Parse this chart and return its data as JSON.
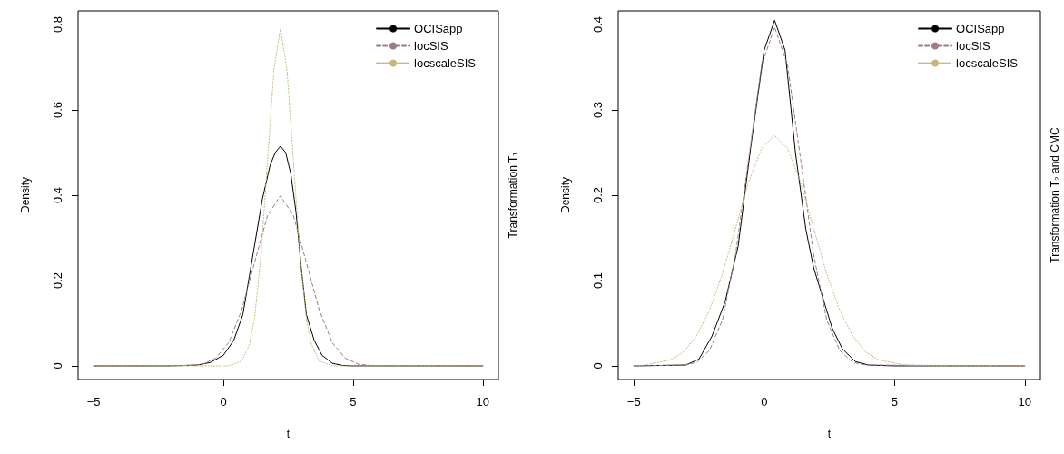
{
  "chart_data": [
    {
      "type": "line",
      "xlabel": "t",
      "ylabel": "Density",
      "y2label": "Transformation T₁",
      "xlim": [
        -5.6,
        10.6
      ],
      "xticks": [
        -5,
        0,
        5,
        10
      ],
      "ylim": [
        -0.032,
        0.832
      ],
      "yticks": [
        0,
        {
          "value": 0.2,
          "label": "0.2"
        },
        {
          "value": 0.4,
          "label": "0.4"
        },
        {
          "value": 0.6,
          "label": "0.6"
        },
        {
          "value": 0.8,
          "label": "0.8"
        }
      ],
      "grid": false,
      "legend": "top right",
      "marker": "none",
      "series": [
        {
          "name": "OCISapp",
          "color": "#000000",
          "line_style": "solid",
          "x": [
            -5,
            -2,
            -1,
            -0.5,
            0,
            0.4,
            0.75,
            1.0,
            1.5,
            1.8,
            2.0,
            2.2,
            2.4,
            2.6,
            2.8,
            3.0,
            3.2,
            3.5,
            3.8,
            4.2,
            4.6,
            5,
            10
          ],
          "values": [
            0,
            0,
            0.002,
            0.008,
            0.025,
            0.06,
            0.12,
            0.21,
            0.39,
            0.47,
            0.5,
            0.515,
            0.5,
            0.45,
            0.36,
            0.23,
            0.12,
            0.06,
            0.025,
            0.006,
            0.001,
            0,
            0
          ]
        },
        {
          "name": "locSIS",
          "color": "#9e7a8c",
          "line_style": "dashed",
          "x": [
            -5,
            -1.3,
            -0.8,
            -0.3,
            0.2,
            0.7,
            1.2,
            1.7,
            2.2,
            2.7,
            3.2,
            3.7,
            4.2,
            4.7,
            5.2,
            5.7,
            10
          ],
          "values": [
            0,
            0.001,
            0.004,
            0.018,
            0.054,
            0.13,
            0.242,
            0.352,
            0.399,
            0.352,
            0.242,
            0.13,
            0.054,
            0.018,
            0.004,
            0.001,
            0
          ]
        },
        {
          "name": "locscaleSIS",
          "color": "#c9b77a",
          "line_style": "dotted",
          "x": [
            -5,
            0.2,
            0.7,
            1.0,
            1.2,
            1.45,
            1.7,
            1.95,
            2.2,
            2.45,
            2.7,
            2.95,
            3.2,
            3.4,
            3.7,
            4.2,
            10
          ],
          "values": [
            0,
            0,
            0.011,
            0.05,
            0.11,
            0.26,
            0.48,
            0.695,
            0.79,
            0.695,
            0.48,
            0.26,
            0.11,
            0.05,
            0.011,
            0,
            0
          ]
        }
      ]
    },
    {
      "type": "line",
      "xlabel": "t",
      "ylabel": "Density",
      "y2label": "Transformation T₂ and CMC",
      "xlim": [
        -5.6,
        10.6
      ],
      "xticks": [
        -5,
        0,
        5,
        10
      ],
      "ylim": [
        -0.016,
        0.416
      ],
      "yticks": [
        0,
        {
          "value": 0.1,
          "label": "0.1"
        },
        {
          "value": 0.2,
          "label": "0.2"
        },
        {
          "value": 0.3,
          "label": "0.3"
        },
        {
          "value": 0.4,
          "label": "0.4"
        }
      ],
      "grid": false,
      "legend": "top right",
      "marker": "none",
      "series": [
        {
          "name": "OCISapp",
          "color": "#000000",
          "line_style": "solid",
          "x": [
            -5,
            -3,
            -2.5,
            -2,
            -1.5,
            -1,
            -0.5,
            0,
            0.4,
            0.8,
            1.2,
            1.6,
            1.9,
            2.2,
            2.6,
            3,
            3.5,
            4,
            5,
            10
          ],
          "values": [
            0,
            0.001,
            0.008,
            0.035,
            0.075,
            0.14,
            0.26,
            0.37,
            0.405,
            0.37,
            0.25,
            0.16,
            0.115,
            0.085,
            0.045,
            0.02,
            0.005,
            0.001,
            0,
            0
          ]
        },
        {
          "name": "locSIS",
          "color": "#9e7a8c",
          "line_style": "dashed",
          "x": [
            -5,
            -3.1,
            -2.6,
            -2.1,
            -1.6,
            -1.1,
            -0.6,
            -0.1,
            0.4,
            0.9,
            1.4,
            1.9,
            2.4,
            2.9,
            3.4,
            3.9,
            10
          ],
          "values": [
            0,
            0.001,
            0.004,
            0.018,
            0.054,
            0.13,
            0.242,
            0.352,
            0.397,
            0.352,
            0.242,
            0.13,
            0.054,
            0.018,
            0.004,
            0.001,
            0
          ]
        },
        {
          "name": "locscaleSIS",
          "color": "#c9b77a",
          "line_style": "dotted",
          "x": [
            -5,
            -4.6,
            -3.6,
            -3.1,
            -2.6,
            -2.1,
            -1.6,
            -1.1,
            -0.6,
            -0.1,
            0.4,
            0.9,
            1.4,
            1.9,
            2.4,
            2.9,
            3.4,
            3.9,
            4.4,
            5.4,
            6.5,
            10
          ],
          "values": [
            0,
            0.001,
            0.007,
            0.016,
            0.035,
            0.065,
            0.108,
            0.161,
            0.215,
            0.255,
            0.27,
            0.255,
            0.215,
            0.161,
            0.108,
            0.065,
            0.035,
            0.016,
            0.007,
            0.001,
            0,
            0
          ]
        }
      ]
    }
  ]
}
